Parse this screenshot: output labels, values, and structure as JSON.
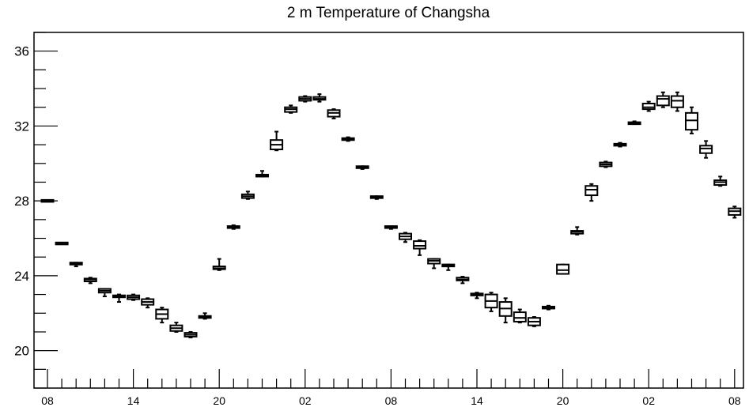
{
  "chart_data": {
    "type": "box",
    "title": "2 m Temperature of Changsha",
    "xlabel": "",
    "ylabel": "",
    "ylim": [
      18,
      37
    ],
    "yticks": [
      20,
      24,
      28,
      32,
      36
    ],
    "xticks": [
      {
        "label": "08",
        "hour": 0
      },
      {
        "label": "14",
        "hour": 6
      },
      {
        "label": "20",
        "hour": 12
      },
      {
        "label": "02",
        "hour": 18
      },
      {
        "label": "08",
        "hour": 24
      },
      {
        "label": "14",
        "hour": 30
      },
      {
        "label": "20",
        "hour": 36
      },
      {
        "label": "02",
        "hour": 42
      },
      {
        "label": "08",
        "hour": 48
      }
    ],
    "grid": false,
    "boxes": [
      {
        "hour": 0,
        "min": 28.0,
        "q1": 28.0,
        "median": 28.0,
        "q3": 28.0,
        "max": 28.0
      },
      {
        "hour": 1,
        "min": 25.7,
        "q1": 25.7,
        "median": 25.7,
        "q3": 25.75,
        "max": 25.75
      },
      {
        "hour": 2,
        "min": 24.5,
        "q1": 24.6,
        "median": 24.65,
        "q3": 24.7,
        "max": 24.7
      },
      {
        "hour": 3,
        "min": 23.6,
        "q1": 23.7,
        "median": 23.8,
        "q3": 23.85,
        "max": 23.9
      },
      {
        "hour": 4,
        "min": 22.9,
        "q1": 23.1,
        "median": 23.2,
        "q3": 23.3,
        "max": 23.3
      },
      {
        "hour": 5,
        "min": 22.6,
        "q1": 22.85,
        "median": 22.9,
        "q3": 22.95,
        "max": 23.0
      },
      {
        "hour": 6,
        "min": 22.7,
        "q1": 22.75,
        "median": 22.85,
        "q3": 22.95,
        "max": 23.0
      },
      {
        "hour": 7,
        "min": 22.3,
        "q1": 22.45,
        "median": 22.6,
        "q3": 22.75,
        "max": 22.8
      },
      {
        "hour": 8,
        "min": 21.5,
        "q1": 21.7,
        "median": 21.95,
        "q3": 22.2,
        "max": 22.3
      },
      {
        "hour": 9,
        "min": 21.0,
        "q1": 21.05,
        "median": 21.2,
        "q3": 21.35,
        "max": 21.5
      },
      {
        "hour": 10,
        "min": 20.7,
        "q1": 20.75,
        "median": 20.85,
        "q3": 20.95,
        "max": 21.0
      },
      {
        "hour": 11,
        "min": 21.7,
        "q1": 21.75,
        "median": 21.8,
        "q3": 21.85,
        "max": 22.0
      },
      {
        "hour": 12,
        "min": 24.3,
        "q1": 24.35,
        "median": 24.4,
        "q3": 24.5,
        "max": 24.9
      },
      {
        "hour": 13,
        "min": 26.5,
        "q1": 26.55,
        "median": 26.6,
        "q3": 26.65,
        "max": 26.7
      },
      {
        "hour": 14,
        "min": 28.1,
        "q1": 28.15,
        "median": 28.25,
        "q3": 28.35,
        "max": 28.5
      },
      {
        "hour": 15,
        "min": 29.3,
        "q1": 29.3,
        "median": 29.35,
        "q3": 29.4,
        "max": 29.6
      },
      {
        "hour": 16,
        "min": 30.7,
        "q1": 30.75,
        "median": 31.0,
        "q3": 31.25,
        "max": 31.7
      },
      {
        "hour": 17,
        "min": 32.7,
        "q1": 32.75,
        "median": 32.9,
        "q3": 33.0,
        "max": 33.1
      },
      {
        "hour": 18,
        "min": 33.3,
        "q1": 33.35,
        "median": 33.45,
        "q3": 33.55,
        "max": 33.6
      },
      {
        "hour": 19,
        "min": 33.3,
        "q1": 33.4,
        "median": 33.45,
        "q3": 33.55,
        "max": 33.7
      },
      {
        "hour": 20,
        "min": 32.4,
        "q1": 32.5,
        "median": 32.7,
        "q3": 32.85,
        "max": 32.9
      },
      {
        "hour": 21,
        "min": 31.2,
        "q1": 31.25,
        "median": 31.3,
        "q3": 31.35,
        "max": 31.4
      },
      {
        "hour": 22,
        "min": 29.7,
        "q1": 29.75,
        "median": 29.8,
        "q3": 29.85,
        "max": 29.85
      },
      {
        "hour": 23,
        "min": 28.1,
        "q1": 28.15,
        "median": 28.2,
        "q3": 28.25,
        "max": 28.25
      },
      {
        "hour": 24,
        "min": 26.5,
        "q1": 26.55,
        "median": 26.6,
        "q3": 26.65,
        "max": 26.65
      },
      {
        "hour": 25,
        "min": 25.8,
        "q1": 25.95,
        "median": 26.1,
        "q3": 26.25,
        "max": 26.3
      },
      {
        "hour": 26,
        "min": 25.1,
        "q1": 25.45,
        "median": 25.6,
        "q3": 25.85,
        "max": 25.9
      },
      {
        "hour": 27,
        "min": 24.4,
        "q1": 24.65,
        "median": 24.8,
        "q3": 24.9,
        "max": 24.9
      },
      {
        "hour": 28,
        "min": 24.3,
        "q1": 24.5,
        "median": 24.55,
        "q3": 24.6,
        "max": 24.6
      },
      {
        "hour": 29,
        "min": 23.6,
        "q1": 23.75,
        "median": 23.8,
        "q3": 23.9,
        "max": 23.95
      },
      {
        "hour": 30,
        "min": 22.8,
        "q1": 22.95,
        "median": 23.0,
        "q3": 23.05,
        "max": 23.1
      },
      {
        "hour": 31,
        "min": 22.1,
        "q1": 22.3,
        "median": 22.65,
        "q3": 23.0,
        "max": 23.1
      },
      {
        "hour": 32,
        "min": 21.5,
        "q1": 21.85,
        "median": 22.25,
        "q3": 22.6,
        "max": 22.8
      },
      {
        "hour": 33,
        "min": 21.5,
        "q1": 21.55,
        "median": 21.75,
        "q3": 22.05,
        "max": 22.2
      },
      {
        "hour": 34,
        "min": 21.3,
        "q1": 21.35,
        "median": 21.55,
        "q3": 21.75,
        "max": 21.8
      },
      {
        "hour": 35,
        "min": 22.2,
        "q1": 22.25,
        "median": 22.3,
        "q3": 22.35,
        "max": 22.4
      },
      {
        "hour": 36,
        "min": 24.1,
        "q1": 24.1,
        "median": 24.3,
        "q3": 24.6,
        "max": 24.6
      },
      {
        "hour": 37,
        "min": 26.2,
        "q1": 26.25,
        "median": 26.35,
        "q3": 26.4,
        "max": 26.6
      },
      {
        "hour": 38,
        "min": 28.0,
        "q1": 28.3,
        "median": 28.6,
        "q3": 28.8,
        "max": 28.9
      },
      {
        "hour": 39,
        "min": 29.8,
        "q1": 29.85,
        "median": 29.95,
        "q3": 30.05,
        "max": 30.1
      },
      {
        "hour": 40,
        "min": 30.9,
        "q1": 30.95,
        "median": 31.0,
        "q3": 31.05,
        "max": 31.1
      },
      {
        "hour": 41,
        "min": 32.1,
        "q1": 32.1,
        "median": 32.15,
        "q3": 32.2,
        "max": 32.25
      },
      {
        "hour": 42,
        "min": 32.8,
        "q1": 32.9,
        "median": 33.0,
        "q3": 33.2,
        "max": 33.3
      },
      {
        "hour": 43,
        "min": 33.0,
        "q1": 33.1,
        "median": 33.45,
        "q3": 33.6,
        "max": 33.8
      },
      {
        "hour": 44,
        "min": 32.8,
        "q1": 33.0,
        "median": 33.35,
        "q3": 33.6,
        "max": 33.8
      },
      {
        "hour": 45,
        "min": 31.6,
        "q1": 31.8,
        "median": 32.3,
        "q3": 32.7,
        "max": 33.0
      },
      {
        "hour": 46,
        "min": 30.3,
        "q1": 30.55,
        "median": 30.8,
        "q3": 30.95,
        "max": 31.2
      },
      {
        "hour": 47,
        "min": 28.8,
        "q1": 28.85,
        "median": 29.0,
        "q3": 29.1,
        "max": 29.3
      },
      {
        "hour": 48,
        "min": 27.1,
        "q1": 27.25,
        "median": 27.45,
        "q3": 27.6,
        "max": 27.7
      }
    ]
  }
}
